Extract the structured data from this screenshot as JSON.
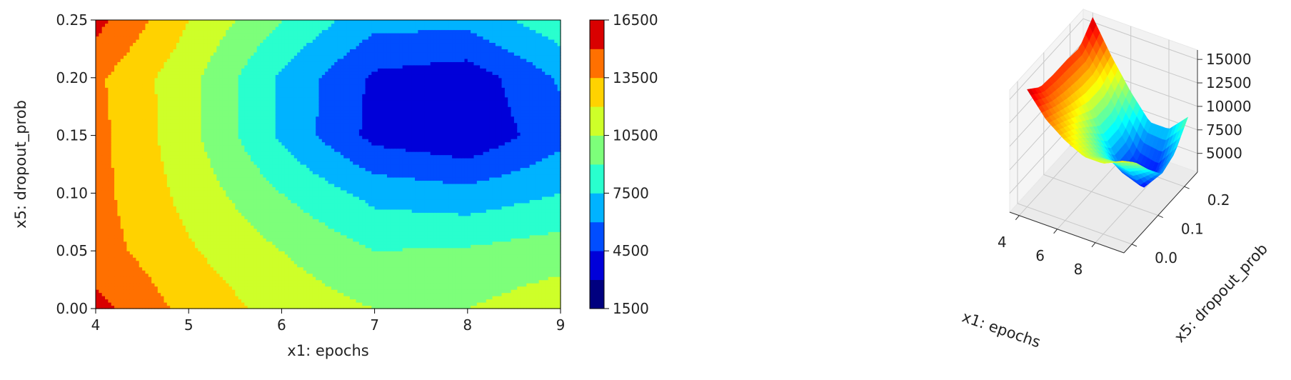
{
  "chart_data": [
    {
      "type": "heatmap",
      "subtype": "filled-contour",
      "xlabel": "x1: epochs",
      "ylabel": "x5: dropout_prob",
      "xlim": [
        4,
        9
      ],
      "ylim": [
        0,
        0.25
      ],
      "x_ticks": [
        "4",
        "5",
        "6",
        "7",
        "8",
        "9"
      ],
      "y_ticks": [
        "0.00",
        "0.05",
        "0.10",
        "0.15",
        "0.20",
        "0.25"
      ],
      "x_grid": [
        4,
        5,
        6,
        7,
        8,
        9
      ],
      "y_grid": [
        0.0,
        0.05,
        0.1,
        0.15,
        0.2,
        0.25
      ],
      "z_grid": [
        [
          15500,
          13000,
          11500,
          10500,
          10500,
          11500
        ],
        [
          14200,
          12200,
          10500,
          9000,
          9200,
          9800
        ],
        [
          14000,
          11500,
          9000,
          7000,
          6500,
          7500
        ],
        [
          14000,
          11000,
          7200,
          4000,
          3200,
          5500
        ],
        [
          13800,
          11000,
          7200,
          4200,
          3600,
          6200
        ],
        [
          15500,
          12000,
          9000,
          6500,
          6500,
          8500
        ]
      ],
      "colorbar": {
        "levels": [
          1500,
          3000,
          4500,
          6000,
          7500,
          9000,
          10500,
          12000,
          13500,
          15000,
          16500
        ],
        "tick_labels": [
          "1500",
          "4500",
          "7500",
          "10500",
          "13500",
          "16500"
        ],
        "colormap": "jet",
        "colors": [
          "#00007f",
          "#0000d9",
          "#004dff",
          "#00b3ff",
          "#29ffce",
          "#7dff7a",
          "#ceff29",
          "#ffd200",
          "#ff7000",
          "#d90000",
          "#7f0000"
        ]
      },
      "grid": false
    },
    {
      "type": "surface-3d",
      "colormap": "jet",
      "xlabel": "x1: epochs",
      "ylabel": "x5: dropout_prob",
      "x_ticks": [
        "4",
        "6",
        "8"
      ],
      "y_ticks": [
        "0.0",
        "0.1",
        "0.2"
      ],
      "z_ticks": [
        "5000",
        "7500",
        "10000",
        "12500",
        "15000"
      ],
      "zlim": [
        3000,
        16000
      ],
      "grid": true
    }
  ]
}
